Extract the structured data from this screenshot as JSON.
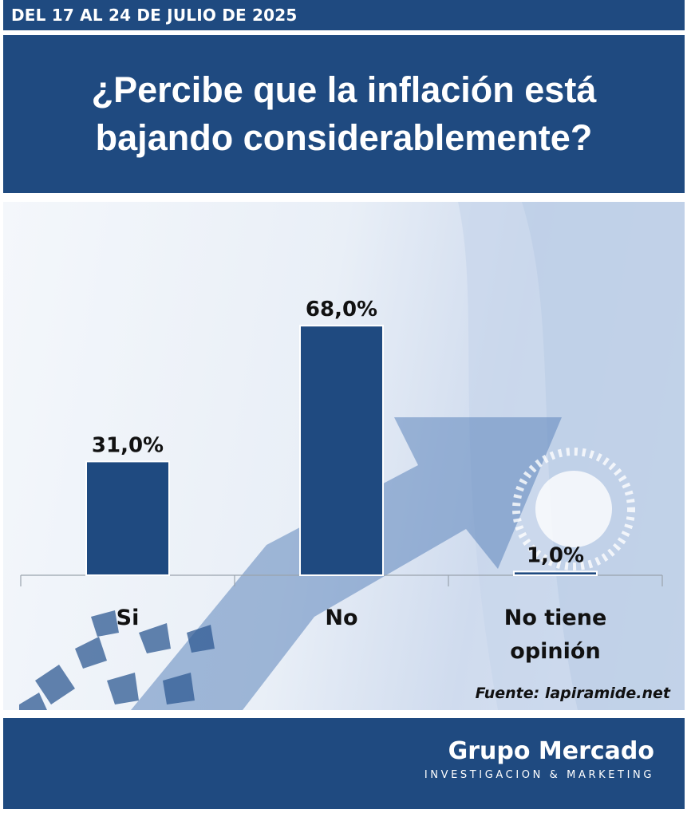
{
  "header": {
    "date_range": "DEL 17 AL 24 DE JULIO DE 2025",
    "question": "¿Percibe que la inflación está bajando considerablemente?"
  },
  "chart_data": {
    "type": "bar",
    "title": "¿Percibe que la inflación está bajando considerablemente?",
    "categories": [
      "Si",
      "No",
      "No tiene opinión"
    ],
    "values": [
      31.0,
      68.0,
      1.0
    ],
    "value_labels": [
      "31,0%",
      "68,0%",
      "1,0%"
    ],
    "unit": "%",
    "ylim": [
      0,
      100
    ],
    "bar_color": "#1f4a80",
    "grid": false,
    "legend": "none"
  },
  "source": "Fuente: lapiramide.net",
  "footer": {
    "brand": "Grupo Mercado",
    "tagline": "INVESTIGACION & MARKETING"
  },
  "colors": {
    "primary": "#1f4a80",
    "text_dark": "#111111",
    "background_light": "#e9eff7"
  }
}
